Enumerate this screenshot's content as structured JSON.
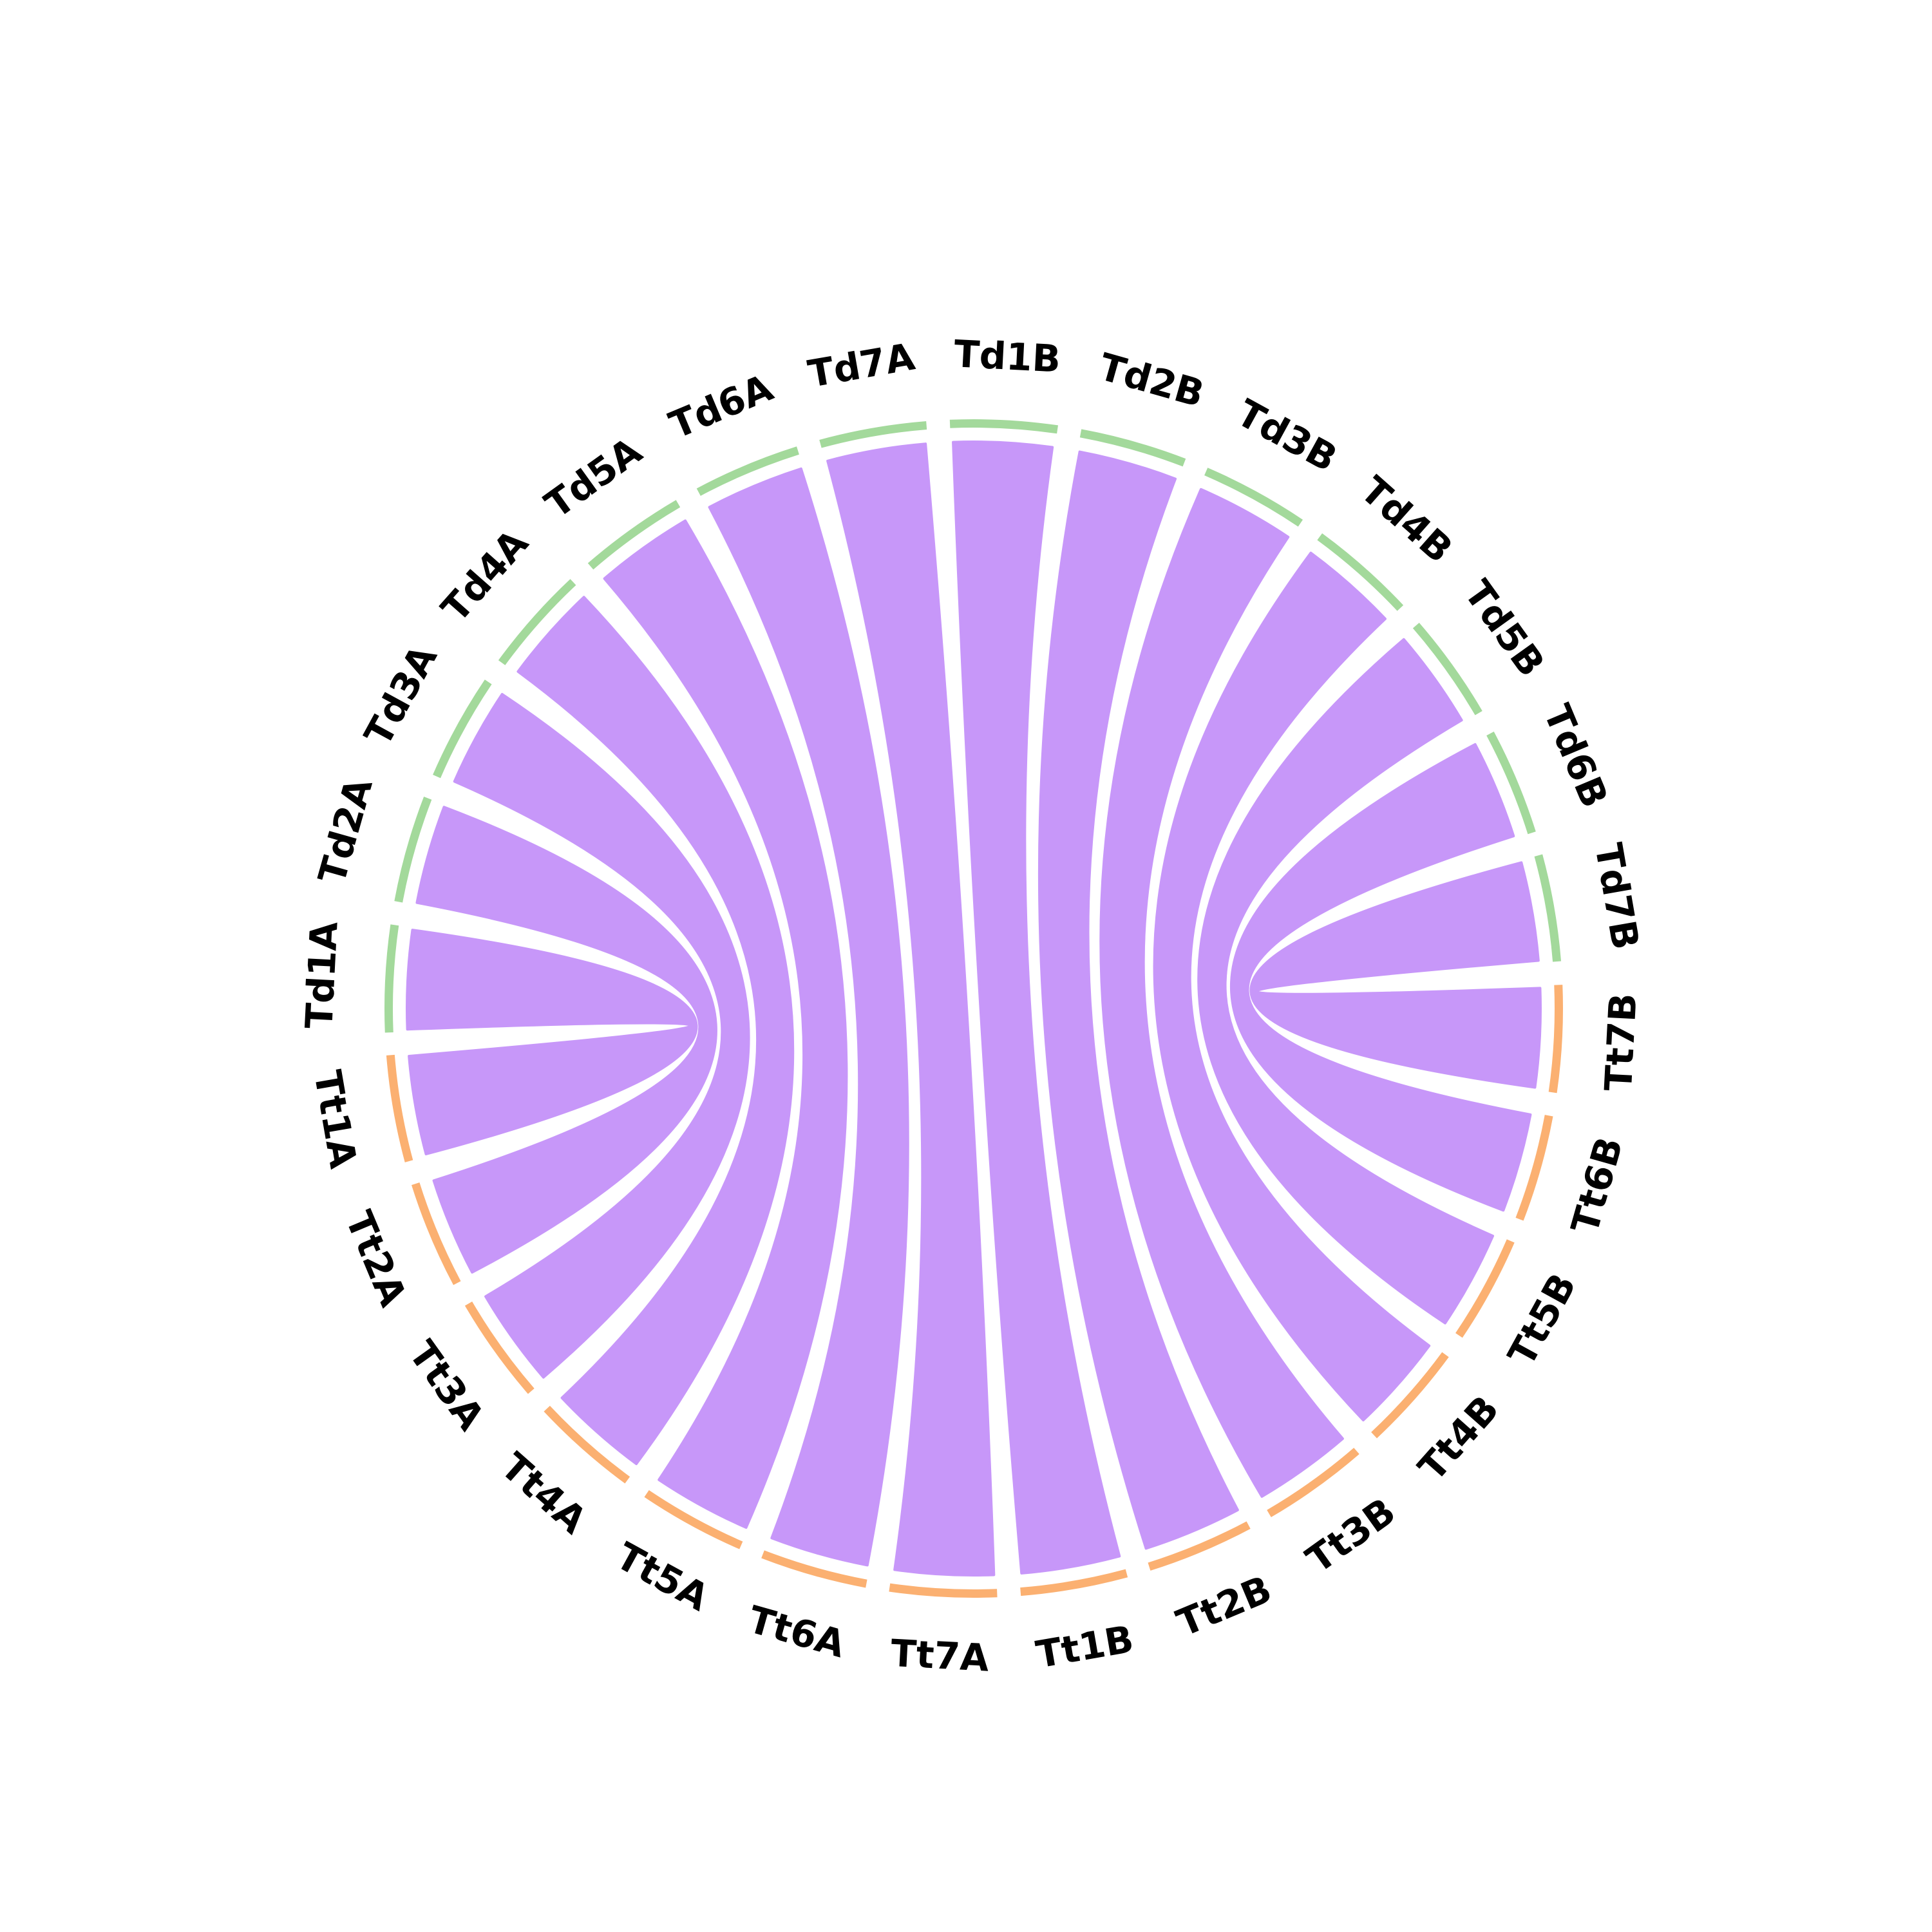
{
  "colors": {
    "genome_Td": "#a3d99b",
    "genome_Tt": "#fbb071",
    "link": "#c797f9",
    "label": "#000000",
    "background": "#ffffff"
  },
  "chromosomes": [
    {
      "id": "Td1A",
      "label": "Td1A",
      "genome": "Td"
    },
    {
      "id": "Td2A",
      "label": "Td2A",
      "genome": "Td"
    },
    {
      "id": "Td3A",
      "label": "Td3A",
      "genome": "Td"
    },
    {
      "id": "Td4A",
      "label": "Td4A",
      "genome": "Td"
    },
    {
      "id": "Td5A",
      "label": "Td5A",
      "genome": "Td"
    },
    {
      "id": "Td6A",
      "label": "Td6A",
      "genome": "Td"
    },
    {
      "id": "Td7A",
      "label": "Td7A",
      "genome": "Td"
    },
    {
      "id": "Td1B",
      "label": "Td1B",
      "genome": "Td"
    },
    {
      "id": "Td2B",
      "label": "Td2B",
      "genome": "Td"
    },
    {
      "id": "Td3B",
      "label": "Td3B",
      "genome": "Td"
    },
    {
      "id": "Td4B",
      "label": "Td4B",
      "genome": "Td"
    },
    {
      "id": "Td5B",
      "label": "Td5B",
      "genome": "Td"
    },
    {
      "id": "Td6B",
      "label": "Td6B",
      "genome": "Td"
    },
    {
      "id": "Td7B",
      "label": "Td7B",
      "genome": "Td"
    },
    {
      "id": "Tt7B",
      "label": "Tt7B",
      "genome": "Tt"
    },
    {
      "id": "Tt6B",
      "label": "Tt6B",
      "genome": "Tt"
    },
    {
      "id": "Tt5B",
      "label": "Tt5B",
      "genome": "Tt"
    },
    {
      "id": "Tt4B",
      "label": "Tt4B",
      "genome": "Tt"
    },
    {
      "id": "Tt3B",
      "label": "Tt3B",
      "genome": "Tt"
    },
    {
      "id": "Tt2B",
      "label": "Tt2B",
      "genome": "Tt"
    },
    {
      "id": "Tt1B",
      "label": "Tt1B",
      "genome": "Tt"
    },
    {
      "id": "Tt7A",
      "label": "Tt7A",
      "genome": "Tt"
    },
    {
      "id": "Tt6A",
      "label": "Tt6A",
      "genome": "Tt"
    },
    {
      "id": "Tt5A",
      "label": "Tt5A",
      "genome": "Tt"
    },
    {
      "id": "Tt4A",
      "label": "Tt4A",
      "genome": "Tt"
    },
    {
      "id": "Tt3A",
      "label": "Tt3A",
      "genome": "Tt"
    },
    {
      "id": "Tt2A",
      "label": "Tt2A",
      "genome": "Tt"
    },
    {
      "id": "Tt1A",
      "label": "Tt1A",
      "genome": "Tt"
    }
  ],
  "links": [
    {
      "source": "Td1A",
      "target": "Tt1A"
    },
    {
      "source": "Td2A",
      "target": "Tt2A"
    },
    {
      "source": "Td3A",
      "target": "Tt3A"
    },
    {
      "source": "Td4A",
      "target": "Tt4A"
    },
    {
      "source": "Td5A",
      "target": "Tt5A"
    },
    {
      "source": "Td6A",
      "target": "Tt6A"
    },
    {
      "source": "Td7A",
      "target": "Tt7A"
    },
    {
      "source": "Td1B",
      "target": "Tt1B"
    },
    {
      "source": "Td2B",
      "target": "Tt2B"
    },
    {
      "source": "Td3B",
      "target": "Tt3B"
    },
    {
      "source": "Td4B",
      "target": "Tt4B"
    },
    {
      "source": "Td5B",
      "target": "Tt5B"
    },
    {
      "source": "Td6B",
      "target": "Tt6B"
    },
    {
      "source": "Td7B",
      "target": "Tt7B"
    }
  ]
}
